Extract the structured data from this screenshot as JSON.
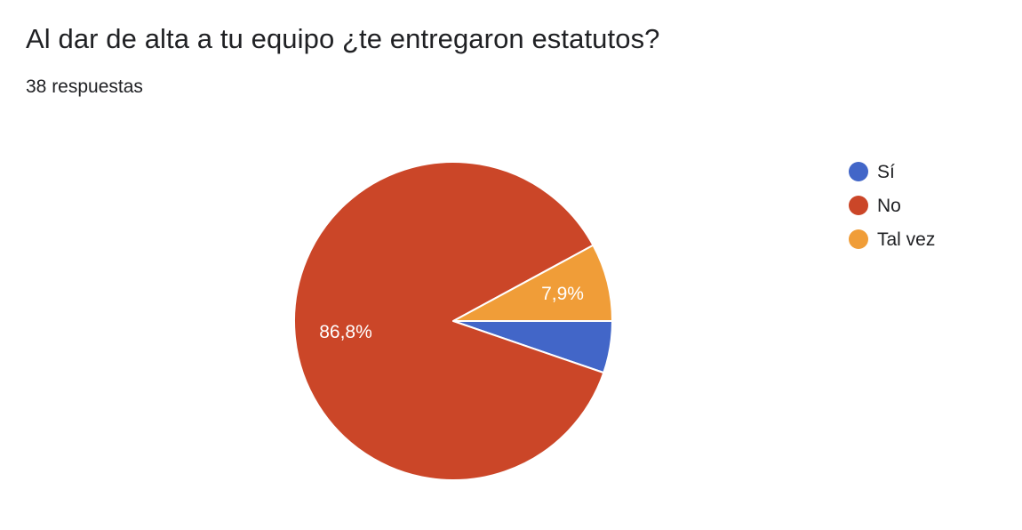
{
  "header": {
    "title": "Al dar de alta a tu equipo ¿te entregaron estatutos?",
    "response_count": "38 respuestas"
  },
  "chart_data": {
    "type": "pie",
    "categories": [
      "Sí",
      "No",
      "Tal vez"
    ],
    "values": [
      2,
      33,
      3
    ],
    "percent_labels": [
      "",
      "86,8%",
      "7,9%"
    ],
    "colors": [
      "#4266c8",
      "#cb4628",
      "#f09d38"
    ],
    "legend_position": "right",
    "start_angle_direction": "clockwise from 3 o'clock"
  }
}
